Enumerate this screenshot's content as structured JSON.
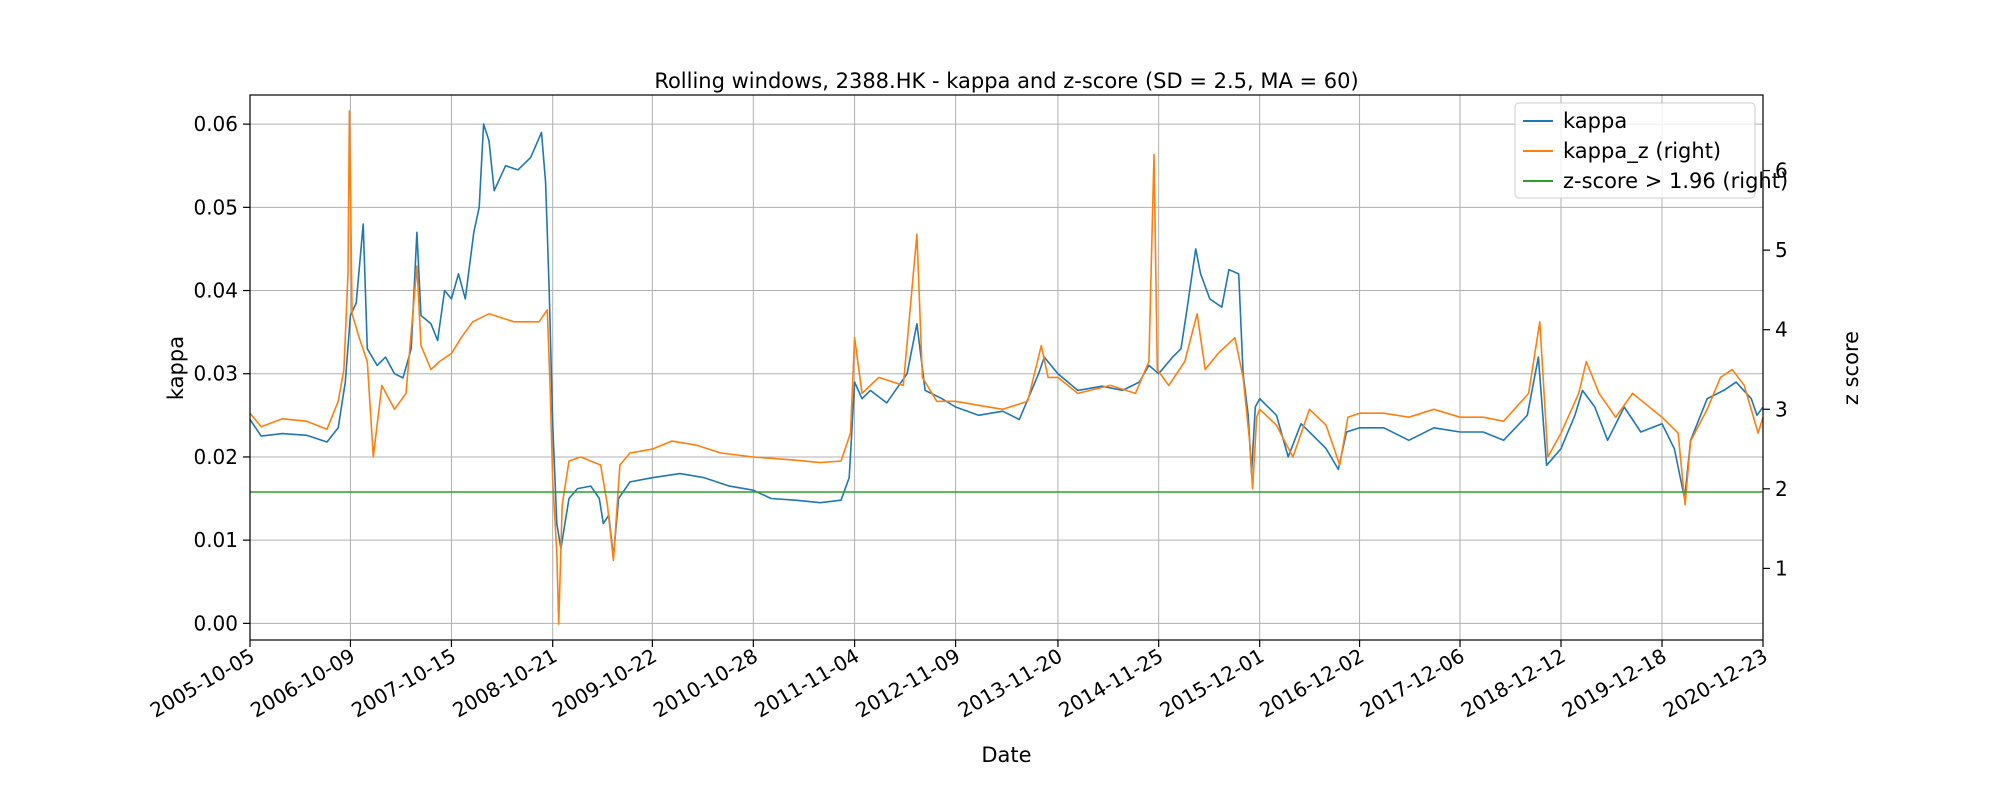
{
  "chart_data": {
    "type": "line",
    "title": "Rolling windows, 2388.HK - kappa and z-score (SD = 2.5, MA = 60)",
    "xlabel": "Date",
    "ylabel_left": "kappa",
    "ylabel_right": "z score",
    "x_range": [
      "2005-10-05",
      "2020-12-23"
    ],
    "x_ticks": [
      "2005-10-05",
      "2006-10-09",
      "2007-10-15",
      "2008-10-21",
      "2009-10-22",
      "2010-10-28",
      "2011-11-04",
      "2012-11-09",
      "2013-11-20",
      "2014-11-25",
      "2015-12-01",
      "2016-12-02",
      "2017-12-06",
      "2018-12-12",
      "2019-12-18",
      "2020-12-23"
    ],
    "ylim_left": [
      -0.002,
      0.0635
    ],
    "ylim_right": [
      0.1,
      6.95
    ],
    "yticks_left": [
      0.0,
      0.01,
      0.02,
      0.03,
      0.04,
      0.05,
      0.06
    ],
    "yticks_left_labels": [
      "0.00",
      "0.01",
      "0.02",
      "0.03",
      "0.04",
      "0.05",
      "0.06"
    ],
    "yticks_right": [
      1,
      2,
      3,
      4,
      5,
      6
    ],
    "yticks_right_labels": [
      "1",
      "2",
      "3",
      "4",
      "5",
      "6"
    ],
    "grid": true,
    "legend_position": "top-right",
    "colors": {
      "kappa": "#1f77b4",
      "kappa_z": "#ff7f0e",
      "threshold": "#2ca02c"
    },
    "series": [
      {
        "name": "kappa",
        "axis": "left",
        "points": [
          [
            "2005-10-05",
            0.0245
          ],
          [
            "2005-11-15",
            0.0225
          ],
          [
            "2006-02-01",
            0.0228
          ],
          [
            "2006-05-01",
            0.0226
          ],
          [
            "2006-07-15",
            0.0218
          ],
          [
            "2006-08-25",
            0.0235
          ],
          [
            "2006-09-20",
            0.029
          ],
          [
            "2006-10-09",
            0.037
          ],
          [
            "2006-10-30",
            0.0385
          ],
          [
            "2006-11-25",
            0.048
          ],
          [
            "2006-12-10",
            0.033
          ],
          [
            "2007-01-15",
            0.031
          ],
          [
            "2007-02-15",
            0.032
          ],
          [
            "2007-03-20",
            0.03
          ],
          [
            "2007-04-20",
            0.0295
          ],
          [
            "2007-05-20",
            0.033
          ],
          [
            "2007-06-10",
            0.047
          ],
          [
            "2007-06-25",
            0.037
          ],
          [
            "2007-08-01",
            0.036
          ],
          [
            "2007-08-25",
            0.034
          ],
          [
            "2007-09-20",
            0.04
          ],
          [
            "2007-10-15",
            0.039
          ],
          [
            "2007-11-10",
            0.042
          ],
          [
            "2007-12-05",
            0.039
          ],
          [
            "2008-01-05",
            0.047
          ],
          [
            "2008-01-25",
            0.05
          ],
          [
            "2008-02-10",
            0.06
          ],
          [
            "2008-03-01",
            0.058
          ],
          [
            "2008-03-20",
            0.052
          ],
          [
            "2008-05-01",
            0.055
          ],
          [
            "2008-06-15",
            0.0545
          ],
          [
            "2008-08-01",
            0.056
          ],
          [
            "2008-09-10",
            0.059
          ],
          [
            "2008-09-25",
            0.053
          ],
          [
            "2008-10-08",
            0.04
          ],
          [
            "2008-10-21",
            0.024
          ],
          [
            "2008-11-05",
            0.012
          ],
          [
            "2008-11-20",
            0.009
          ],
          [
            "2008-12-20",
            0.015
          ],
          [
            "2009-01-20",
            0.0162
          ],
          [
            "2009-03-10",
            0.0165
          ],
          [
            "2009-04-10",
            0.015
          ],
          [
            "2009-04-25",
            0.012
          ],
          [
            "2009-05-15",
            0.013
          ],
          [
            "2009-06-01",
            0.008
          ],
          [
            "2009-06-20",
            0.015
          ],
          [
            "2009-08-01",
            0.017
          ],
          [
            "2009-10-22",
            0.0175
          ],
          [
            "2010-02-01",
            0.018
          ],
          [
            "2010-05-01",
            0.0175
          ],
          [
            "2010-08-01",
            0.0165
          ],
          [
            "2010-10-28",
            0.016
          ],
          [
            "2011-01-01",
            0.015
          ],
          [
            "2011-04-01",
            0.0148
          ],
          [
            "2011-07-01",
            0.0145
          ],
          [
            "2011-09-15",
            0.0148
          ],
          [
            "2011-10-15",
            0.0175
          ],
          [
            "2011-11-04",
            0.029
          ],
          [
            "2011-12-01",
            0.027
          ],
          [
            "2012-01-01",
            0.028
          ],
          [
            "2012-03-01",
            0.0265
          ],
          [
            "2012-05-15",
            0.03
          ],
          [
            "2012-06-20",
            0.036
          ],
          [
            "2012-07-20",
            0.028
          ],
          [
            "2012-09-20",
            0.027
          ],
          [
            "2012-11-09",
            0.026
          ],
          [
            "2013-02-01",
            0.025
          ],
          [
            "2013-05-01",
            0.0255
          ],
          [
            "2013-07-01",
            0.0245
          ],
          [
            "2013-09-10",
            0.03
          ],
          [
            "2013-10-01",
            0.032
          ],
          [
            "2013-11-20",
            0.03
          ],
          [
            "2014-02-01",
            0.028
          ],
          [
            "2014-05-01",
            0.0285
          ],
          [
            "2014-07-15",
            0.028
          ],
          [
            "2014-09-15",
            0.029
          ],
          [
            "2014-10-20",
            0.031
          ],
          [
            "2014-11-25",
            0.03
          ],
          [
            "2015-01-15",
            0.032
          ],
          [
            "2015-02-15",
            0.033
          ],
          [
            "2015-03-10",
            0.038
          ],
          [
            "2015-04-10",
            0.045
          ],
          [
            "2015-04-28",
            0.042
          ],
          [
            "2015-06-01",
            0.039
          ],
          [
            "2015-07-15",
            0.038
          ],
          [
            "2015-08-10",
            0.0425
          ],
          [
            "2015-09-15",
            0.042
          ],
          [
            "2015-10-01",
            0.03
          ],
          [
            "2015-10-20",
            0.025
          ],
          [
            "2015-11-01",
            0.018
          ],
          [
            "2015-11-15",
            0.026
          ],
          [
            "2015-12-01",
            0.027
          ],
          [
            "2016-02-01",
            0.025
          ],
          [
            "2016-03-15",
            0.02
          ],
          [
            "2016-05-01",
            0.024
          ],
          [
            "2016-08-01",
            0.021
          ],
          [
            "2016-09-15",
            0.0185
          ],
          [
            "2016-10-15",
            0.023
          ],
          [
            "2016-12-02",
            0.0235
          ],
          [
            "2017-03-01",
            0.0235
          ],
          [
            "2017-06-01",
            0.022
          ],
          [
            "2017-09-01",
            0.0235
          ],
          [
            "2017-12-06",
            0.023
          ],
          [
            "2018-03-01",
            0.023
          ],
          [
            "2018-05-15",
            0.022
          ],
          [
            "2018-08-10",
            0.025
          ],
          [
            "2018-09-20",
            0.032
          ],
          [
            "2018-10-20",
            0.019
          ],
          [
            "2018-12-12",
            0.021
          ],
          [
            "2019-02-01",
            0.025
          ],
          [
            "2019-03-01",
            0.028
          ],
          [
            "2019-04-15",
            0.026
          ],
          [
            "2019-06-01",
            0.022
          ],
          [
            "2019-08-01",
            0.026
          ],
          [
            "2019-10-01",
            0.023
          ],
          [
            "2019-12-18",
            0.024
          ],
          [
            "2020-02-01",
            0.021
          ],
          [
            "2020-03-10",
            0.015
          ],
          [
            "2020-04-01",
            0.022
          ],
          [
            "2020-06-01",
            0.027
          ],
          [
            "2020-08-01",
            0.028
          ],
          [
            "2020-09-15",
            0.029
          ],
          [
            "2020-11-10",
            0.027
          ],
          [
            "2020-12-01",
            0.025
          ],
          [
            "2020-12-23",
            0.026
          ]
        ]
      },
      {
        "name": "kappa_z (right)",
        "axis": "right",
        "points": [
          [
            "2005-10-05",
            2.95
          ],
          [
            "2005-11-15",
            2.78
          ],
          [
            "2006-02-01",
            2.88
          ],
          [
            "2006-05-01",
            2.85
          ],
          [
            "2006-07-15",
            2.75
          ],
          [
            "2006-08-25",
            3.1
          ],
          [
            "2006-09-15",
            3.5
          ],
          [
            "2006-09-30",
            4.7
          ],
          [
            "2006-10-05",
            6.75
          ],
          [
            "2006-10-15",
            4.2
          ],
          [
            "2006-11-10",
            3.9
          ],
          [
            "2006-12-10",
            3.6
          ],
          [
            "2007-01-01",
            2.4
          ],
          [
            "2007-02-01",
            3.3
          ],
          [
            "2007-03-20",
            3.0
          ],
          [
            "2007-05-01",
            3.2
          ],
          [
            "2007-06-10",
            4.8
          ],
          [
            "2007-06-25",
            3.8
          ],
          [
            "2007-08-01",
            3.5
          ],
          [
            "2007-09-01",
            3.6
          ],
          [
            "2007-10-15",
            3.7
          ],
          [
            "2007-11-20",
            3.9
          ],
          [
            "2008-01-01",
            4.1
          ],
          [
            "2008-03-01",
            4.2
          ],
          [
            "2008-06-01",
            4.1
          ],
          [
            "2008-09-01",
            4.1
          ],
          [
            "2008-10-01",
            4.25
          ],
          [
            "2008-10-12",
            3.2
          ],
          [
            "2008-10-21",
            2.1
          ],
          [
            "2008-11-05",
            1.2
          ],
          [
            "2008-11-12",
            0.3
          ],
          [
            "2008-11-25",
            1.8
          ],
          [
            "2008-12-20",
            2.35
          ],
          [
            "2009-02-01",
            2.4
          ],
          [
            "2009-04-15",
            2.3
          ],
          [
            "2009-05-10",
            1.8
          ],
          [
            "2009-06-01",
            1.1
          ],
          [
            "2009-06-25",
            2.3
          ],
          [
            "2009-08-01",
            2.45
          ],
          [
            "2009-10-22",
            2.5
          ],
          [
            "2010-01-01",
            2.6
          ],
          [
            "2010-04-01",
            2.55
          ],
          [
            "2010-07-01",
            2.45
          ],
          [
            "2010-10-28",
            2.4
          ],
          [
            "2011-01-15",
            2.38
          ],
          [
            "2011-04-01",
            2.36
          ],
          [
            "2011-07-01",
            2.33
          ],
          [
            "2011-09-15",
            2.35
          ],
          [
            "2011-10-20",
            2.7
          ],
          [
            "2011-11-04",
            3.9
          ],
          [
            "2011-12-01",
            3.2
          ],
          [
            "2012-02-01",
            3.4
          ],
          [
            "2012-05-01",
            3.3
          ],
          [
            "2012-06-20",
            5.2
          ],
          [
            "2012-07-10",
            3.4
          ],
          [
            "2012-09-01",
            3.1
          ],
          [
            "2012-11-09",
            3.1
          ],
          [
            "2013-02-01",
            3.05
          ],
          [
            "2013-05-01",
            3.0
          ],
          [
            "2013-08-01",
            3.1
          ],
          [
            "2013-09-20",
            3.8
          ],
          [
            "2013-10-15",
            3.4
          ],
          [
            "2013-11-20",
            3.4
          ],
          [
            "2014-02-01",
            3.2
          ],
          [
            "2014-06-01",
            3.3
          ],
          [
            "2014-09-01",
            3.2
          ],
          [
            "2014-10-20",
            3.6
          ],
          [
            "2014-11-08",
            6.2
          ],
          [
            "2014-11-20",
            3.5
          ],
          [
            "2015-01-01",
            3.3
          ],
          [
            "2015-03-01",
            3.6
          ],
          [
            "2015-04-15",
            4.2
          ],
          [
            "2015-05-15",
            3.5
          ],
          [
            "2015-07-01",
            3.7
          ],
          [
            "2015-09-01",
            3.9
          ],
          [
            "2015-10-01",
            3.4
          ],
          [
            "2015-10-25",
            2.6
          ],
          [
            "2015-11-05",
            2.0
          ],
          [
            "2015-11-20",
            2.9
          ],
          [
            "2015-12-01",
            3.0
          ],
          [
            "2016-02-01",
            2.8
          ],
          [
            "2016-04-01",
            2.4
          ],
          [
            "2016-06-01",
            3.0
          ],
          [
            "2016-08-01",
            2.8
          ],
          [
            "2016-09-20",
            2.3
          ],
          [
            "2016-10-20",
            2.9
          ],
          [
            "2016-12-02",
            2.95
          ],
          [
            "2017-03-01",
            2.95
          ],
          [
            "2017-06-01",
            2.9
          ],
          [
            "2017-09-01",
            3.0
          ],
          [
            "2017-12-06",
            2.9
          ],
          [
            "2018-03-01",
            2.9
          ],
          [
            "2018-05-15",
            2.85
          ],
          [
            "2018-08-15",
            3.2
          ],
          [
            "2018-09-25",
            4.1
          ],
          [
            "2018-10-25",
            2.4
          ],
          [
            "2018-12-12",
            2.7
          ],
          [
            "2019-02-15",
            3.2
          ],
          [
            "2019-03-15",
            3.6
          ],
          [
            "2019-05-01",
            3.2
          ],
          [
            "2019-07-01",
            2.9
          ],
          [
            "2019-09-01",
            3.2
          ],
          [
            "2019-12-18",
            2.9
          ],
          [
            "2020-02-15",
            2.7
          ],
          [
            "2020-03-12",
            1.8
          ],
          [
            "2020-04-01",
            2.6
          ],
          [
            "2020-06-01",
            3.0
          ],
          [
            "2020-07-20",
            3.4
          ],
          [
            "2020-09-01",
            3.5
          ],
          [
            "2020-10-15",
            3.3
          ],
          [
            "2020-12-05",
            2.7
          ],
          [
            "2020-12-23",
            2.9
          ]
        ]
      },
      {
        "name": "z-score > 1.96 (right)",
        "axis": "right",
        "points": [
          [
            "2005-10-05",
            1.96
          ],
          [
            "2020-12-23",
            1.96
          ]
        ]
      }
    ]
  }
}
